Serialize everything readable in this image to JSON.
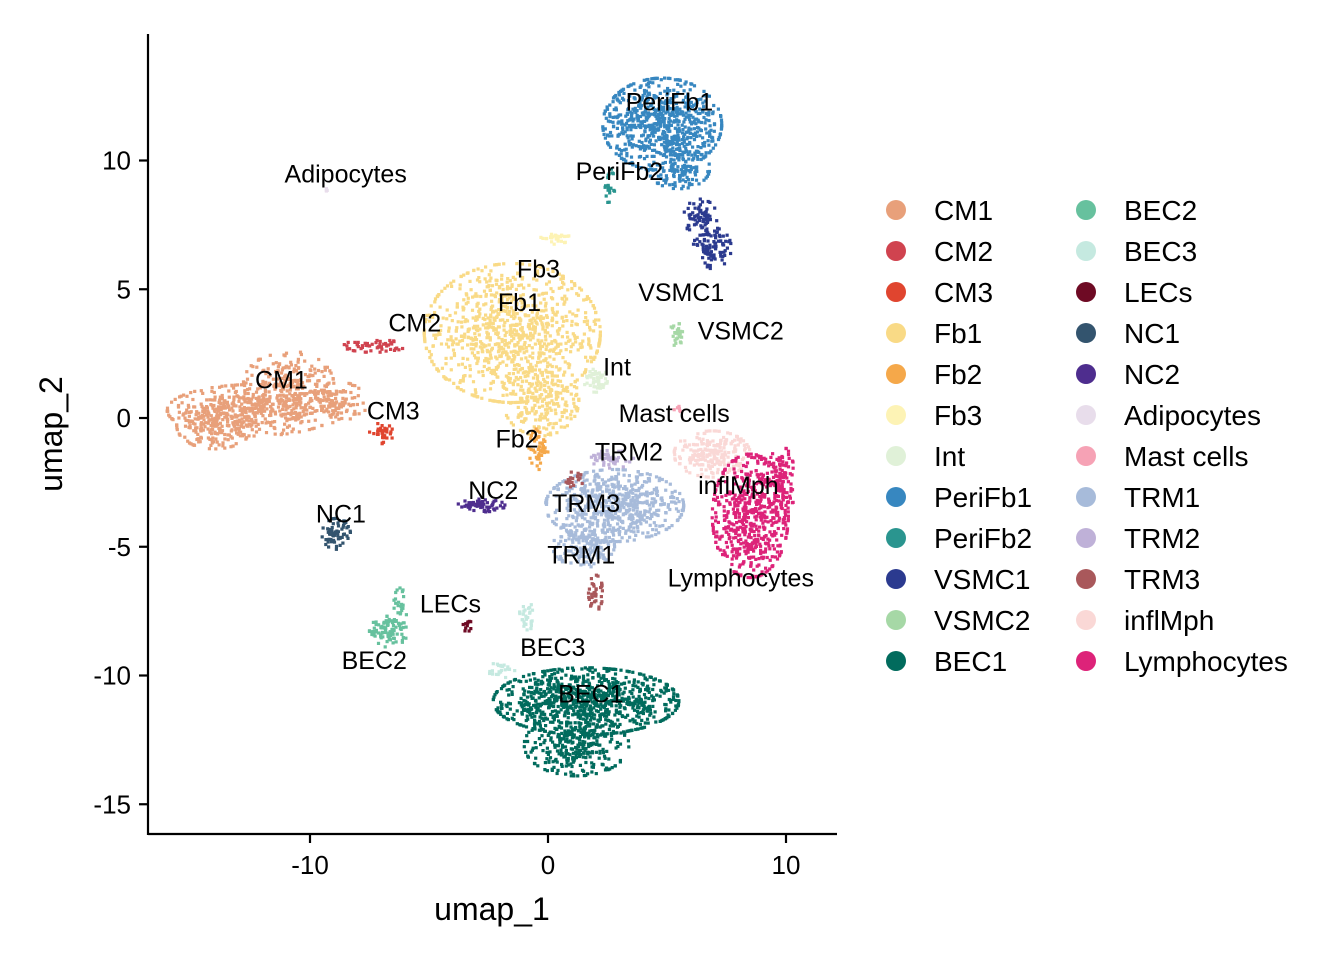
{
  "chart_data": {
    "type": "scatter",
    "xlabel": "umap_1",
    "ylabel": "umap_2",
    "xlim": [
      -16.8,
      12.2
    ],
    "ylim": [
      -16.6,
      15
    ],
    "xticks": [
      -10,
      0,
      10
    ],
    "yticks": [
      -15,
      -10,
      -5,
      0,
      5,
      10
    ],
    "xtick_labels": [
      "-10",
      "0",
      "10"
    ],
    "ytick_labels": [
      "-15",
      "-10",
      "-5",
      "0",
      "5",
      "10"
    ],
    "grid": false,
    "legend_position": "right",
    "clusters": [
      {
        "name": "CM1",
        "color": "#E8A07A",
        "label": "CM1",
        "label_xy": [
          -11.2,
          1.5
        ],
        "blobs": [
          {
            "cx": -12.4,
            "cy": 0.3,
            "rx": 3.6,
            "ry": 1.0,
            "n": 420
          },
          {
            "cx": -14.0,
            "cy": -0.3,
            "rx": 1.6,
            "ry": 0.9,
            "n": 180
          },
          {
            "cx": -10.9,
            "cy": 1.3,
            "rx": 1.9,
            "ry": 1.3,
            "n": 220
          },
          {
            "cx": -8.8,
            "cy": 0.6,
            "rx": 1.2,
            "ry": 0.8,
            "n": 90
          }
        ]
      },
      {
        "name": "CM2",
        "color": "#D0434F",
        "label": "CM2",
        "label_xy": [
          -5.6,
          3.7
        ],
        "blobs": [
          {
            "cx": -7.3,
            "cy": 2.8,
            "rx": 1.3,
            "ry": 0.25,
            "n": 50
          }
        ]
      },
      {
        "name": "CM3",
        "color": "#E0452F",
        "label": "CM3",
        "label_xy": [
          -6.5,
          0.3
        ],
        "blobs": [
          {
            "cx": -7.0,
            "cy": -0.6,
            "rx": 0.5,
            "ry": 0.4,
            "n": 35
          }
        ]
      },
      {
        "name": "Fb1",
        "color": "#F9DA86",
        "label": "Fb1",
        "label_xy": [
          -1.2,
          4.5
        ],
        "blobs": [
          {
            "cx": -1.5,
            "cy": 3.3,
            "rx": 3.7,
            "ry": 2.7,
            "n": 900
          },
          {
            "cx": -0.3,
            "cy": 0.7,
            "rx": 1.6,
            "ry": 1.4,
            "n": 220
          }
        ]
      },
      {
        "name": "Fb2",
        "color": "#F5A84A",
        "label": "Fb2",
        "label_xy": [
          -1.3,
          -0.8
        ],
        "blobs": [
          {
            "cx": -0.4,
            "cy": -1.2,
            "rx": 0.4,
            "ry": 0.8,
            "n": 50
          }
        ]
      },
      {
        "name": "Fb3",
        "color": "#FDF3B5",
        "label": "Fb3",
        "label_xy": [
          -0.4,
          5.8
        ],
        "blobs": [
          {
            "cx": 0.3,
            "cy": 7.0,
            "rx": 0.6,
            "ry": 0.25,
            "n": 30
          }
        ]
      },
      {
        "name": "Int",
        "color": "#E0F1D8",
        "label": "Int",
        "label_xy": [
          2.9,
          2.0
        ],
        "blobs": [
          {
            "cx": 2.0,
            "cy": 1.5,
            "rx": 0.5,
            "ry": 0.5,
            "n": 50
          }
        ]
      },
      {
        "name": "PeriFb1",
        "color": "#3787C0",
        "label": "PeriFb1",
        "label_xy": [
          5.1,
          12.3
        ],
        "blobs": [
          {
            "cx": 4.8,
            "cy": 11.4,
            "rx": 2.5,
            "ry": 1.8,
            "n": 700
          },
          {
            "cx": 5.5,
            "cy": 9.7,
            "rx": 1.3,
            "ry": 0.8,
            "n": 120
          }
        ]
      },
      {
        "name": "PeriFb2",
        "color": "#2A958F",
        "label": "PeriFb2",
        "label_xy": [
          3.0,
          9.6
        ],
        "blobs": [
          {
            "cx": 2.6,
            "cy": 9.0,
            "rx": 0.2,
            "ry": 0.7,
            "n": 20
          }
        ]
      },
      {
        "name": "VSMC1",
        "color": "#2B3A8F",
        "label": "VSMC1",
        "label_xy": [
          5.6,
          4.9
        ],
        "blobs": [
          {
            "cx": 6.4,
            "cy": 7.8,
            "rx": 0.7,
            "ry": 0.7,
            "n": 70
          },
          {
            "cx": 6.9,
            "cy": 6.6,
            "rx": 0.8,
            "ry": 0.8,
            "n": 100
          }
        ]
      },
      {
        "name": "VSMC2",
        "color": "#A6D8A6",
        "label": "VSMC2",
        "label_xy": [
          8.1,
          3.4
        ],
        "blobs": [
          {
            "cx": 5.4,
            "cy": 3.2,
            "rx": 0.3,
            "ry": 0.5,
            "n": 25
          }
        ]
      },
      {
        "name": "BEC1",
        "color": "#016B5D",
        "label": "BEC1",
        "label_xy": [
          1.8,
          -10.7
        ],
        "blobs": [
          {
            "cx": 1.6,
            "cy": -11.0,
            "rx": 3.9,
            "ry": 1.3,
            "n": 900
          },
          {
            "cx": 1.2,
            "cy": -12.7,
            "rx": 2.2,
            "ry": 1.2,
            "n": 300
          }
        ]
      },
      {
        "name": "BEC2",
        "color": "#67C19E",
        "label": "BEC2",
        "label_xy": [
          -7.3,
          -9.4
        ],
        "blobs": [
          {
            "cx": -6.7,
            "cy": -8.3,
            "rx": 0.8,
            "ry": 0.6,
            "n": 90
          },
          {
            "cx": -6.2,
            "cy": -7.3,
            "rx": 0.3,
            "ry": 0.7,
            "n": 25
          }
        ]
      },
      {
        "name": "BEC3",
        "color": "#C5E9E0",
        "label": "BEC3",
        "label_xy": [
          0.2,
          -8.9
        ],
        "blobs": [
          {
            "cx": -0.9,
            "cy": -7.7,
            "rx": 0.3,
            "ry": 0.6,
            "n": 30
          },
          {
            "cx": -2.0,
            "cy": -9.8,
            "rx": 0.6,
            "ry": 0.3,
            "n": 25
          }
        ]
      },
      {
        "name": "LECs",
        "color": "#6E0A24",
        "label": "LECs",
        "label_xy": [
          -4.1,
          -7.2
        ],
        "blobs": [
          {
            "cx": -3.4,
            "cy": -8.0,
            "rx": 0.2,
            "ry": 0.3,
            "n": 12
          }
        ]
      },
      {
        "name": "NC1",
        "color": "#33546E",
        "label": "NC1",
        "label_xy": [
          -8.7,
          -3.7
        ],
        "blobs": [
          {
            "cx": -8.9,
            "cy": -4.5,
            "rx": 0.6,
            "ry": 0.6,
            "n": 70
          }
        ]
      },
      {
        "name": "NC2",
        "color": "#4E2D8E",
        "label": "NC2",
        "label_xy": [
          -2.3,
          -2.8
        ],
        "blobs": [
          {
            "cx": -2.8,
            "cy": -3.4,
            "rx": 1.0,
            "ry": 0.25,
            "n": 60
          }
        ]
      },
      {
        "name": "Adipocytes",
        "color": "#E8DDEB",
        "label": "Adipocytes",
        "label_xy": [
          -8.5,
          9.5
        ],
        "blobs": [
          {
            "cx": -9.3,
            "cy": 8.9,
            "rx": 0.1,
            "ry": 0.1,
            "n": 4
          }
        ]
      },
      {
        "name": "Mast cells",
        "color": "#F6A2B5",
        "label": "Mast cells",
        "label_xy": [
          5.3,
          0.2
        ],
        "blobs": [
          {
            "cx": 5.5,
            "cy": 0.3,
            "rx": 0.2,
            "ry": 0.15,
            "n": 6
          }
        ]
      },
      {
        "name": "TRM1",
        "color": "#A7BBDA",
        "label": "TRM1",
        "label_xy": [
          1.4,
          -5.3
        ],
        "blobs": [
          {
            "cx": 2.8,
            "cy": -3.4,
            "rx": 2.9,
            "ry": 1.4,
            "n": 650
          },
          {
            "cx": 1.5,
            "cy": -5.0,
            "rx": 1.3,
            "ry": 0.8,
            "n": 150
          }
        ]
      },
      {
        "name": "TRM2",
        "color": "#BFB1D8",
        "label": "TRM2",
        "label_xy": [
          3.4,
          -1.3
        ],
        "blobs": [
          {
            "cx": 2.7,
            "cy": -1.6,
            "rx": 0.9,
            "ry": 0.35,
            "n": 50
          }
        ]
      },
      {
        "name": "TRM3",
        "color": "#A9585B",
        "label": "TRM3",
        "label_xy": [
          1.6,
          -3.3
        ],
        "blobs": [
          {
            "cx": 2.0,
            "cy": -6.8,
            "rx": 0.3,
            "ry": 0.7,
            "n": 40
          },
          {
            "cx": 1.0,
            "cy": -2.4,
            "rx": 0.5,
            "ry": 0.3,
            "n": 20
          }
        ]
      },
      {
        "name": "inflMph",
        "color": "#FAD8D6",
        "label": "inflMph",
        "label_xy": [
          8.0,
          -2.6
        ],
        "blobs": [
          {
            "cx": 6.9,
            "cy": -1.4,
            "rx": 1.6,
            "ry": 0.9,
            "n": 220
          }
        ]
      },
      {
        "name": "Lymphocytes",
        "color": "#DD2379",
        "label": "Lymphocytes",
        "label_xy": [
          8.1,
          -6.2
        ],
        "blobs": [
          {
            "cx": 8.5,
            "cy": -3.8,
            "rx": 1.6,
            "ry": 2.4,
            "n": 550
          },
          {
            "cx": 9.8,
            "cy": -2.5,
            "rx": 0.6,
            "ry": 1.4,
            "n": 120
          }
        ]
      }
    ]
  }
}
